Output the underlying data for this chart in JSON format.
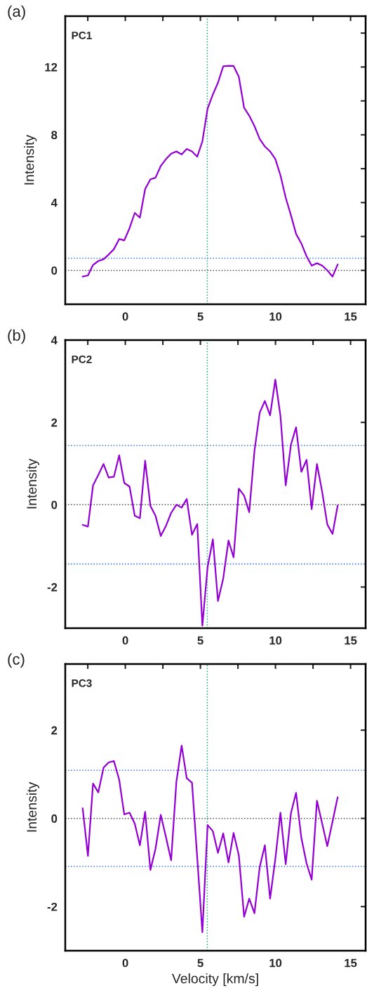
{
  "chart_data": [
    {
      "type": "line",
      "title": "(a)",
      "annotations": [
        "PC1"
      ],
      "ylabel": "Intensity",
      "x": [
        -2.84,
        -2.49,
        -2.15,
        -1.8,
        -1.45,
        -1.11,
        -0.76,
        -0.41,
        -0.07,
        0.28,
        0.63,
        0.97,
        1.32,
        1.67,
        2.01,
        2.36,
        2.71,
        3.05,
        3.4,
        3.75,
        4.09,
        4.44,
        4.79,
        5.13,
        5.48,
        5.83,
        6.17,
        6.52,
        6.87,
        7.21,
        7.56,
        7.91,
        8.25,
        8.6,
        8.95,
        9.29,
        9.64,
        9.99,
        10.33,
        10.68,
        11.03,
        11.37,
        11.72,
        12.07,
        12.41,
        12.76,
        13.11,
        13.45,
        13.8,
        14.14
      ],
      "series": [
        {
          "color": "#9400d3",
          "values": [
            -0.37,
            -0.3,
            0.32,
            0.55,
            0.66,
            0.93,
            1.25,
            1.85,
            1.77,
            2.49,
            3.39,
            3.11,
            4.8,
            5.37,
            5.47,
            6.16,
            6.57,
            6.88,
            7.02,
            6.84,
            7.16,
            7.02,
            6.71,
            7.61,
            9.55,
            10.38,
            11.07,
            12.04,
            12.07,
            12.06,
            11.42,
            9.59,
            9.13,
            8.51,
            7.75,
            7.31,
            7.02,
            6.57,
            5.61,
            4.29,
            3.25,
            2.15,
            1.59,
            0.83,
            0.28,
            0.42,
            0.28,
            0.0,
            -0.37,
            0.35
          ]
        }
      ],
      "xlim": [
        -4,
        16
      ],
      "xticks": [
        {
          "value": -2.5,
          "label": null
        },
        0,
        {
          "value": 2.5,
          "label": null
        },
        5,
        {
          "value": 7.5,
          "label": null
        },
        10,
        {
          "value": 12.5,
          "label": null
        },
        15
      ],
      "ylim": [
        -2,
        15
      ],
      "yticks": [
        0,
        {
          "value": 2,
          "label": null
        },
        4,
        {
          "value": 6,
          "label": null
        },
        8,
        {
          "value": 10,
          "label": null
        },
        12,
        {
          "value": 14,
          "label": null
        }
      ],
      "ref_lines": [
        {
          "axis": "y",
          "value": 0,
          "color": "#555555",
          "line_style": "dotted"
        },
        {
          "axis": "y",
          "value": 0.72,
          "color": "#3b7de8",
          "line_style": "dotted"
        },
        {
          "axis": "x",
          "value": 5.46,
          "color": "#1fa37a",
          "line_style": "dotted"
        }
      ],
      "grid": false,
      "legend": false,
      "line_style": "solid"
    },
    {
      "type": "line",
      "title": "(b)",
      "annotations": [
        "PC2"
      ],
      "ylabel": "Intensity",
      "x": [
        -2.84,
        -2.49,
        -2.15,
        -1.8,
        -1.45,
        -1.11,
        -0.76,
        -0.41,
        -0.07,
        0.28,
        0.63,
        0.97,
        1.32,
        1.67,
        2.01,
        2.36,
        2.71,
        3.05,
        3.4,
        3.75,
        4.09,
        4.44,
        4.79,
        5.13,
        5.48,
        5.83,
        6.17,
        6.52,
        6.87,
        7.21,
        7.56,
        7.91,
        8.25,
        8.6,
        8.95,
        9.29,
        9.64,
        9.99,
        10.33,
        10.68,
        11.03,
        11.37,
        11.72,
        12.07,
        12.41,
        12.76,
        13.11,
        13.45,
        13.8,
        14.14
      ],
      "series": [
        {
          "color": "#9400d3",
          "values": [
            -0.49,
            -0.53,
            0.47,
            0.72,
            0.99,
            0.66,
            0.68,
            1.2,
            0.53,
            0.44,
            -0.27,
            -0.33,
            1.07,
            -0.03,
            -0.27,
            -0.76,
            -0.51,
            -0.2,
            0.0,
            -0.07,
            0.14,
            -0.73,
            -0.47,
            -2.94,
            -1.51,
            -0.84,
            -2.34,
            -1.79,
            -0.87,
            -1.28,
            0.39,
            0.22,
            -0.18,
            1.31,
            2.24,
            2.52,
            2.17,
            3.04,
            2.16,
            0.47,
            1.46,
            1.88,
            0.8,
            1.09,
            -0.11,
            0.99,
            0.31,
            -0.48,
            -0.71,
            -0.02
          ]
        }
      ],
      "xlim": [
        -4,
        16
      ],
      "xticks": [
        {
          "value": -2.5,
          "label": null
        },
        0,
        {
          "value": 2.5,
          "label": null
        },
        5,
        {
          "value": 7.5,
          "label": null
        },
        10,
        {
          "value": 12.5,
          "label": null
        },
        15
      ],
      "ylim": [
        -3,
        4
      ],
      "yticks": [
        -2,
        0,
        2,
        4
      ],
      "ref_lines": [
        {
          "axis": "y",
          "value": 0,
          "color": "#555555",
          "line_style": "dotted"
        },
        {
          "axis": "y",
          "value": 1.44,
          "color": "#3b7de8",
          "line_style": "dotted"
        },
        {
          "axis": "y",
          "value": -1.44,
          "color": "#3b7de8",
          "line_style": "dotted"
        },
        {
          "axis": "x",
          "value": 5.46,
          "color": "#1fa37a",
          "line_style": "dotted"
        }
      ],
      "grid": false,
      "legend": false,
      "line_style": "solid"
    },
    {
      "type": "line",
      "title": "(c)",
      "annotations": [
        "PC3"
      ],
      "ylabel": "Intensity",
      "xlabel": "Velocity [km/s]",
      "x": [
        -2.84,
        -2.49,
        -2.15,
        -1.8,
        -1.45,
        -1.11,
        -0.76,
        -0.41,
        -0.07,
        0.28,
        0.63,
        0.97,
        1.32,
        1.67,
        2.01,
        2.36,
        2.71,
        3.05,
        3.4,
        3.75,
        4.09,
        4.44,
        4.79,
        5.13,
        5.48,
        5.83,
        6.17,
        6.52,
        6.87,
        7.21,
        7.56,
        7.91,
        8.25,
        8.6,
        8.95,
        9.29,
        9.64,
        9.99,
        10.33,
        10.68,
        11.03,
        11.37,
        11.72,
        12.07,
        12.41,
        12.76,
        13.11,
        13.45,
        13.8,
        14.14
      ],
      "series": [
        {
          "color": "#9400d3",
          "values": [
            0.23,
            -0.85,
            0.79,
            0.59,
            1.15,
            1.27,
            1.3,
            0.88,
            0.09,
            0.13,
            -0.12,
            -0.61,
            0.15,
            -1.17,
            -0.69,
            0.08,
            -0.43,
            -0.95,
            0.83,
            1.65,
            0.91,
            0.81,
            -0.9,
            -2.58,
            -0.15,
            -0.29,
            -0.78,
            -0.34,
            -1.0,
            -0.33,
            -0.84,
            -2.23,
            -1.82,
            -2.15,
            -1.1,
            -0.61,
            -1.82,
            -0.92,
            0.13,
            -1.04,
            0.12,
            0.58,
            -0.44,
            -1.02,
            -1.39,
            0.4,
            -0.12,
            -0.63,
            -0.07,
            0.48
          ]
        }
      ],
      "xlim": [
        -4,
        16
      ],
      "xticks": [
        {
          "value": -2.5,
          "label": null
        },
        0,
        {
          "value": 2.5,
          "label": null
        },
        5,
        {
          "value": 7.5,
          "label": null
        },
        10,
        {
          "value": 12.5,
          "label": null
        },
        15
      ],
      "ylim": [
        -3,
        3.5
      ],
      "yticks": [
        -2,
        0,
        2
      ],
      "ref_lines": [
        {
          "axis": "y",
          "value": 0,
          "color": "#555555",
          "line_style": "dotted"
        },
        {
          "axis": "y",
          "value": 1.09,
          "color": "#3b7de8",
          "line_style": "dotted"
        },
        {
          "axis": "y",
          "value": -1.09,
          "color": "#3b7de8",
          "line_style": "dotted"
        },
        {
          "axis": "x",
          "value": 5.46,
          "color": "#1fa37a",
          "line_style": "dotted"
        }
      ],
      "grid": false,
      "legend": false,
      "line_style": "solid"
    }
  ]
}
